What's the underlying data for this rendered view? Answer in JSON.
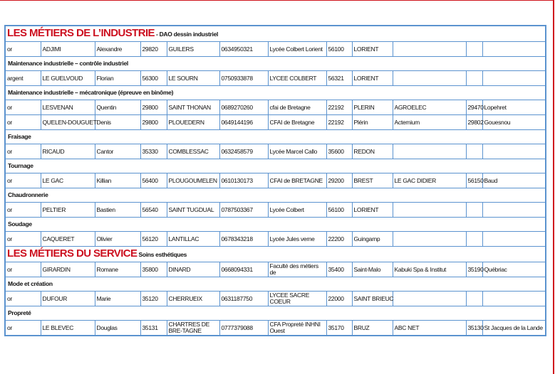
{
  "colors": {
    "accent": "#cc1020",
    "grid": "#5b93cf"
  },
  "rows": [
    {
      "type": "heading",
      "title": "LES MÉTIERS DE L’INDUSTRIE",
      "subtitle": "- DAO dessin industriel"
    },
    {
      "type": "data",
      "cells": [
        "or",
        "ADJIMI",
        "Alexandre",
        "29820",
        "GUILERS",
        "0634950321",
        "Lycée Colbert Lorient",
        "56100",
        "LORIENT",
        "",
        "",
        ""
      ]
    },
    {
      "type": "section",
      "title": "Maintenance industrielle – contrôle industriel"
    },
    {
      "type": "data",
      "cells": [
        "argent",
        "LE GUELVOUD",
        "Florian",
        "56300",
        "LE SOURN",
        "0750933878",
        "LYCEE COLBERT",
        "56321",
        "LORIENT",
        "",
        "",
        ""
      ]
    },
    {
      "type": "section",
      "title": "Maintenance industrielle – mécatronique (épreuve en binôme)"
    },
    {
      "type": "data",
      "cells": [
        "or",
        "LESVENAN",
        "Quentin",
        "29800",
        "SAINT THONAN",
        "0689270260",
        "cfai de Bretagne",
        "22192",
        "PLERIN",
        "AGROELEC",
        "29470",
        "Lopehret"
      ]
    },
    {
      "type": "data",
      "cells": [
        "or",
        "QUELEN-DOUGUET",
        "Denis",
        "29800",
        "PLOUEDERN",
        "0649144196",
        "CFAI de Bretagne",
        "22192",
        "Plérin",
        "Actemium",
        "29802",
        "Gouesnou"
      ]
    },
    {
      "type": "section",
      "title": "Fraisage"
    },
    {
      "type": "data",
      "cells": [
        "or",
        "RICAUD",
        "Cantor",
        "35330",
        "COMBLESSAC",
        "0632458579",
        "Lycée Marcel Callo",
        "35600",
        "REDON",
        "",
        "",
        ""
      ]
    },
    {
      "type": "section",
      "title": "Tournage"
    },
    {
      "type": "data",
      "cells": [
        "or",
        "LE GAC",
        "Killian",
        "56400",
        "PLOUGOUMELEN",
        "0610130173",
        "CFAI de BRETAGNE",
        "29200",
        "BREST",
        "LE GAC DIDIER",
        "56150",
        "Baud"
      ]
    },
    {
      "type": "section",
      "title": "Chaudronnerie"
    },
    {
      "type": "data",
      "cells": [
        "or",
        "PELTIER",
        "Bastien",
        "56540",
        "SAINT TUGDUAL",
        "0787503367",
        "Lycée Colbert",
        "56100",
        "LORIENT",
        "",
        "",
        ""
      ]
    },
    {
      "type": "section",
      "title": "Soudage"
    },
    {
      "type": "data",
      "cells": [
        "or",
        "CAQUERET",
        "Olivier",
        "56120",
        "LANTILLAC",
        "0678343218",
        "Lycée Jules verne",
        "22200",
        "Guingamp",
        "",
        "",
        ""
      ]
    },
    {
      "type": "heading",
      "title": "LES MÉTIERS DU SERVICE",
      "subtitle": "Soins esthétiques"
    },
    {
      "type": "data",
      "cells": [
        "or",
        "GIRARDIN",
        "Romane",
        "35800",
        "DINARD",
        "0668094331",
        "Faculté des métiers de",
        "35400",
        "Saint-Malo",
        "Kabuki Spa & Institut",
        "35190",
        "Québriac"
      ]
    },
    {
      "type": "section",
      "title": "Mode et création"
    },
    {
      "type": "data",
      "cells": [
        "or",
        "DUFOUR",
        "Marie",
        "35120",
        "CHERRUEIX",
        "0631187750",
        "LYCEE SACRE COEUR",
        "22000",
        "SAINT BRIEUC",
        "",
        "",
        ""
      ]
    },
    {
      "type": "section",
      "title": "Propreté"
    },
    {
      "type": "data",
      "cells": [
        "or",
        "LE BLEVEC",
        "Douglas",
        "35131",
        "CHARTRES DE BRE-TAGNE",
        "0777379088",
        "CFA Propreté INHNI Ouest",
        "35170",
        "BRUZ",
        "ABC NET",
        "35130",
        "St Jacques de la Lande"
      ]
    }
  ]
}
